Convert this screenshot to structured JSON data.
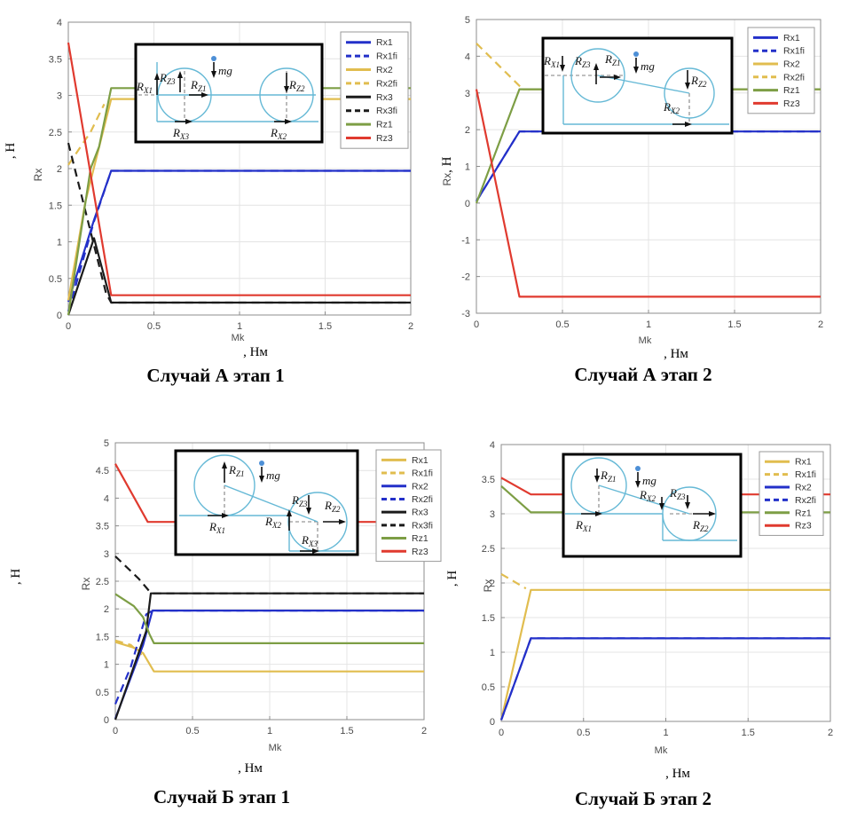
{
  "palette": {
    "blue": "#2330c9",
    "yellow": "#e1bd4f",
    "green": "#7d9e45",
    "red": "#e03a2f",
    "black": "#1b1b1b",
    "inset_line": "#66b9d6",
    "mg_dot": "#4d8fd6",
    "grid": "#e4e4e4",
    "axis": "#8c8c8c",
    "tick_text": "#4a4a4a"
  },
  "chart_data": [
    {
      "id": "a1",
      "type": "line",
      "title": "Случай А этап 1",
      "xlabel": "Mk",
      "x_unit": ", Нм",
      "ylabel": "Rx",
      "y_unit": ", Н",
      "xlim": [
        0,
        2
      ],
      "ylim": [
        0,
        4
      ],
      "xticks": [
        0,
        0.5,
        1,
        1.5,
        2
      ],
      "ytick_step": 0.5,
      "grid": true,
      "legend_position": "top-right",
      "legend": [
        "Rx1",
        "Rx1fi",
        "Rx2",
        "Rx2fi",
        "Rx3",
        "Rx3fi",
        "Rz1",
        "Rz3"
      ],
      "series": [
        {
          "name": "Rx1",
          "color": "blue",
          "dash": false,
          "points": [
            [
              0,
              0.18
            ],
            [
              0.15,
              1.3
            ],
            [
              0.25,
              1.97
            ],
            [
              2,
              1.97
            ]
          ]
        },
        {
          "name": "Rx1fi",
          "color": "blue",
          "dash": true,
          "points": [
            [
              0,
              0.05
            ],
            [
              0.15,
              1.28
            ],
            [
              0.25,
              1.97
            ],
            [
              2,
              1.97
            ]
          ]
        },
        {
          "name": "Rx2fi",
          "color": "yellow",
          "dash": true,
          "points": [
            [
              0,
              2.05
            ],
            [
              0.13,
              2.5
            ],
            [
              0.21,
              2.88
            ]
          ]
        },
        {
          "name": "Rx2",
          "color": "yellow",
          "dash": false,
          "points": [
            [
              0,
              0.2
            ],
            [
              0.1,
              1.55
            ],
            [
              0.25,
              2.95
            ],
            [
              2,
              2.95
            ]
          ]
        },
        {
          "name": "Rx3",
          "color": "black",
          "dash": false,
          "points": [
            [
              0,
              0
            ],
            [
              0.15,
              1.05
            ],
            [
              0.25,
              0.17
            ],
            [
              2,
              0.17
            ]
          ]
        },
        {
          "name": "Rx3fi",
          "color": "black",
          "dash": true,
          "points": [
            [
              0,
              2.35
            ],
            [
              0.22,
              0.3
            ],
            [
              0.25,
              0.17
            ],
            [
              2,
              0.17
            ]
          ]
        },
        {
          "name": "Rz1",
          "color": "green",
          "dash": false,
          "points": [
            [
              0,
              0
            ],
            [
              0.13,
              2.0
            ],
            [
              0.18,
              2.3
            ],
            [
              0.25,
              3.1
            ],
            [
              2,
              3.1
            ]
          ]
        },
        {
          "name": "Rz3",
          "color": "red",
          "dash": false,
          "points": [
            [
              0,
              3.72
            ],
            [
              0.25,
              0.27
            ],
            [
              2,
              0.27
            ]
          ]
        }
      ],
      "inset_labels": {
        "rx1": "R_X1",
        "rx2": "R_X2",
        "rx3": "R_X3",
        "rz1": "R_Z1",
        "rz2": "R_Z2",
        "rz3": "R_Z3",
        "mg": "mg"
      }
    },
    {
      "id": "a2",
      "type": "line",
      "title": "Случай А этап 2",
      "xlabel": "Mk",
      "x_unit": ", Нм",
      "ylabel": "Rx",
      "y_unit": ", Н",
      "xlim": [
        0,
        2
      ],
      "ylim": [
        -3,
        5
      ],
      "xticks": [
        0,
        0.5,
        1,
        1.5,
        2
      ],
      "ytick_step": 1,
      "grid": true,
      "legend_position": "top-right",
      "legend": [
        "Rx1",
        "Rx1fi",
        "Rx2",
        "Rx2fi",
        "Rz1",
        "Rz3"
      ],
      "series": [
        {
          "name": "Rx1fi",
          "color": "blue",
          "dash": true,
          "points": [
            [
              0,
              0.05
            ],
            [
              0.25,
              1.95
            ],
            [
              2,
              1.95
            ]
          ]
        },
        {
          "name": "Rx1",
          "color": "blue",
          "dash": false,
          "points": [
            [
              0,
              0.05
            ],
            [
              0.25,
              1.95
            ],
            [
              2,
              1.95
            ]
          ]
        },
        {
          "name": "Rx2fi",
          "color": "yellow",
          "dash": true,
          "points": [
            [
              0,
              4.35
            ],
            [
              0.27,
              3.1
            ]
          ]
        },
        {
          "name": "Rx2",
          "color": "yellow",
          "dash": false,
          "points": [
            [
              0.27,
              3.1
            ],
            [
              2,
              3.1
            ]
          ]
        },
        {
          "name": "Rz1",
          "color": "green",
          "dash": false,
          "points": [
            [
              0,
              0
            ],
            [
              0.25,
              3.1
            ],
            [
              2,
              3.1
            ]
          ]
        },
        {
          "name": "Rz3",
          "color": "red",
          "dash": false,
          "points": [
            [
              0,
              3.1
            ],
            [
              0.25,
              -2.55
            ],
            [
              2,
              -2.55
            ]
          ]
        }
      ],
      "inset_labels": {
        "rx1": "R_X1",
        "rx2": "R_X2",
        "rz1": "R_Z1",
        "rz2": "R_Z2",
        "rz3": "R_Z3",
        "mg": "mg"
      }
    },
    {
      "id": "b1",
      "type": "line",
      "title": "Случай Б этап 1",
      "xlabel": "Mk",
      "x_unit": ", Нм",
      "ylabel": "Rx",
      "y_unit": ", Н",
      "xlim": [
        0,
        2
      ],
      "ylim": [
        0,
        5
      ],
      "xticks": [
        0,
        0.5,
        1,
        1.5,
        2
      ],
      "ytick_step": 0.5,
      "grid": true,
      "legend_position": "top-right",
      "legend": [
        "Rx1",
        "Rx1fi",
        "Rx2",
        "Rx2fi",
        "Rx3",
        "Rx3fi",
        "Rz1",
        "Rz3"
      ],
      "series": [
        {
          "name": "Rx1fi",
          "color": "yellow",
          "dash": true,
          "points": [
            [
              0,
              1.43
            ],
            [
              0.1,
              1.35
            ],
            [
              0.17,
              1.17
            ]
          ]
        },
        {
          "name": "Rx1",
          "color": "yellow",
          "dash": false,
          "points": [
            [
              0,
              1.4
            ],
            [
              0.12,
              1.3
            ],
            [
              0.18,
              1.2
            ],
            [
              0.25,
              0.87
            ],
            [
              2,
              0.87
            ]
          ]
        },
        {
          "name": "Rx2",
          "color": "blue",
          "dash": false,
          "points": [
            [
              0,
              0.02
            ],
            [
              0.18,
              1.35
            ],
            [
              0.24,
              1.97
            ],
            [
              2,
              1.97
            ]
          ]
        },
        {
          "name": "Rx2fi",
          "color": "blue",
          "dash": true,
          "points": [
            [
              0,
              0.28
            ],
            [
              0.1,
              0.95
            ],
            [
              0.2,
              1.9
            ],
            [
              0.24,
              1.97
            ],
            [
              2,
              1.97
            ]
          ]
        },
        {
          "name": "Rx3",
          "color": "black",
          "dash": false,
          "points": [
            [
              0,
              0
            ],
            [
              0.2,
              1.6
            ],
            [
              0.23,
              2.28
            ],
            [
              2,
              2.28
            ]
          ]
        },
        {
          "name": "Rx3fi",
          "color": "black",
          "dash": true,
          "points": [
            [
              0,
              2.95
            ],
            [
              0.15,
              2.55
            ],
            [
              0.22,
              2.32
            ],
            [
              0.24,
              2.28
            ],
            [
              2,
              2.28
            ]
          ]
        },
        {
          "name": "Rz1",
          "color": "green",
          "dash": false,
          "points": [
            [
              0,
              2.27
            ],
            [
              0.12,
              2.05
            ],
            [
              0.18,
              1.85
            ],
            [
              0.22,
              1.55
            ],
            [
              0.25,
              1.38
            ],
            [
              2,
              1.38
            ]
          ]
        },
        {
          "name": "Rz3",
          "color": "red",
          "dash": false,
          "points": [
            [
              0,
              4.62
            ],
            [
              0.21,
              3.57
            ],
            [
              2,
              3.57
            ]
          ]
        }
      ],
      "inset_labels": {
        "rx1": "R_X1",
        "rx2": "R_X2",
        "rx3": "R_X3",
        "rz1": "R_Z1",
        "rz2": "R_Z2",
        "rz3": "R_Z3",
        "mg": "mg"
      }
    },
    {
      "id": "b2",
      "type": "line",
      "title": "Случай Б этап 2",
      "xlabel": "Mk",
      "x_unit": ", Нм",
      "ylabel": "Rx",
      "y_unit": ", Н",
      "xlim": [
        0,
        2
      ],
      "ylim": [
        0,
        4
      ],
      "xticks": [
        0,
        0.5,
        1,
        1.5,
        2
      ],
      "ytick_step": 0.5,
      "grid": true,
      "legend_position": "top-right",
      "legend": [
        "Rx1",
        "Rx1fi",
        "Rx2",
        "Rx2fi",
        "Rz1",
        "Rz3"
      ],
      "series": [
        {
          "name": "Rx1fi",
          "color": "yellow",
          "dash": true,
          "points": [
            [
              0,
              2.13
            ],
            [
              0.15,
              1.92
            ]
          ]
        },
        {
          "name": "Rx1",
          "color": "yellow",
          "dash": false,
          "points": [
            [
              0,
              0.02
            ],
            [
              0.18,
              1.9
            ],
            [
              2,
              1.9
            ]
          ]
        },
        {
          "name": "Rx2fi",
          "color": "blue",
          "dash": true,
          "points": [
            [
              0,
              0.02
            ],
            [
              0.18,
              1.2
            ],
            [
              2,
              1.2
            ]
          ]
        },
        {
          "name": "Rx2",
          "color": "blue",
          "dash": false,
          "points": [
            [
              0,
              0.02
            ],
            [
              0.18,
              1.2
            ],
            [
              2,
              1.2
            ]
          ]
        },
        {
          "name": "Rz1",
          "color": "green",
          "dash": false,
          "points": [
            [
              0,
              3.4
            ],
            [
              0.18,
              3.02
            ],
            [
              2,
              3.02
            ]
          ]
        },
        {
          "name": "Rz3",
          "color": "red",
          "dash": false,
          "points": [
            [
              0,
              3.52
            ],
            [
              0.18,
              3.28
            ],
            [
              2,
              3.28
            ]
          ]
        }
      ],
      "inset_labels": {
        "rx1": "R_X1",
        "rx2": "R_X2",
        "rz1": "R_Z1",
        "rz2": "R_Z2",
        "rz3": "R_Z3",
        "mg": "mg"
      }
    }
  ]
}
